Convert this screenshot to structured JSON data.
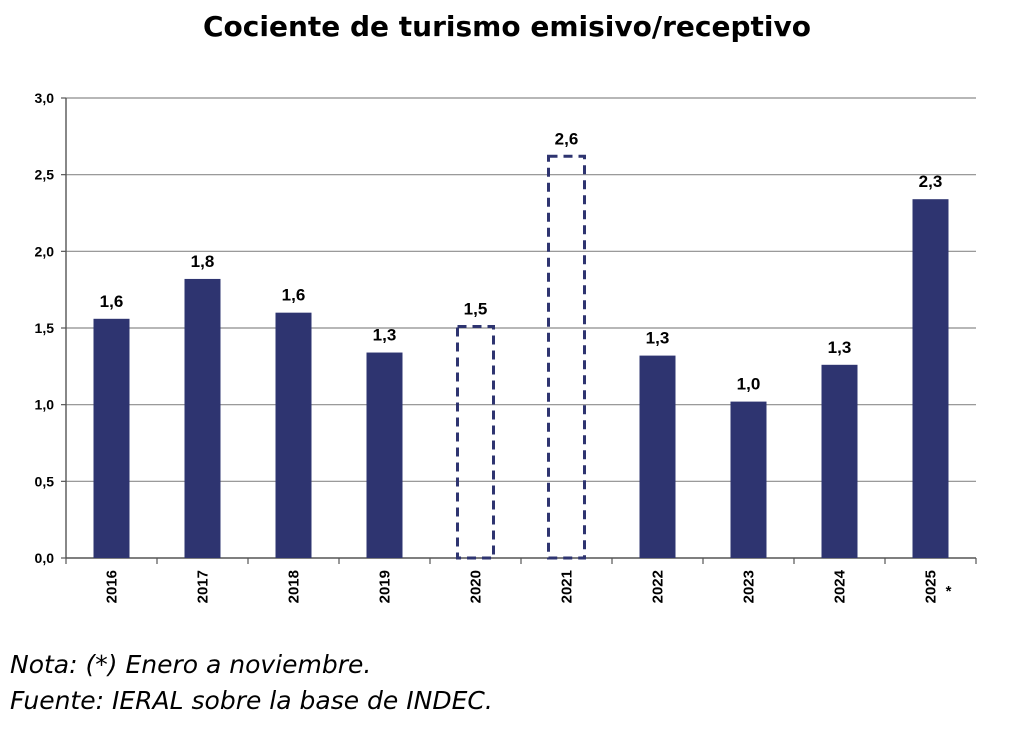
{
  "chart_data": {
    "type": "bar",
    "title": "Cociente de turismo emisivo/receptivo",
    "categories": [
      "2016",
      "2017",
      "2018",
      "2019",
      "2020",
      "2021",
      "2022",
      "2023",
      "2024",
      "2025"
    ],
    "category_suffix": [
      "",
      "",
      "",
      "",
      "",
      "",
      "",
      "",
      "",
      "*"
    ],
    "values": [
      1.56,
      1.82,
      1.6,
      1.34,
      1.51,
      2.62,
      1.32,
      1.02,
      1.26,
      2.34
    ],
    "data_labels": [
      "1,6",
      "1,8",
      "1,6",
      "1,3",
      "1,5",
      "2,6",
      "1,3",
      "1,0",
      "1,3",
      "2,3"
    ],
    "bar_style": [
      "solid",
      "solid",
      "solid",
      "solid",
      "dashed",
      "dashed",
      "solid",
      "solid",
      "solid",
      "solid"
    ],
    "ylim": [
      0,
      3.0
    ],
    "yticks": [
      0,
      0.5,
      1.0,
      1.5,
      2.0,
      2.5,
      3.0
    ],
    "ytick_labels": [
      "0,0",
      "0,5",
      "1,0",
      "1,5",
      "2,0",
      "2,5",
      "3,0"
    ],
    "grid": true,
    "bar_color": "#2e3470",
    "xlabel": "",
    "ylabel": ""
  },
  "notes": {
    "line1": "Nota: (*) Enero a noviembre.",
    "line2": "Fuente: IERAL sobre la base de INDEC."
  }
}
